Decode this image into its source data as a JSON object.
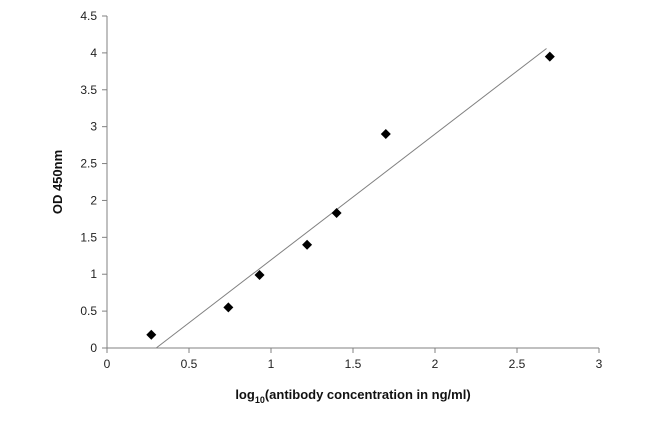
{
  "chart_data": {
    "type": "scatter",
    "title": "",
    "xlabel_main": "log",
    "xlabel_sub": "10",
    "xlabel_rest": "(antibody concentration in ng/ml)",
    "ylabel": "OD 450nm",
    "xlim": [
      0,
      3
    ],
    "ylim": [
      0,
      4.5
    ],
    "x_ticks": [
      0,
      0.5,
      1,
      1.5,
      2,
      2.5,
      3
    ],
    "x_tick_labels": [
      "0",
      "0.5",
      "1",
      "1.5",
      "2",
      "2.5",
      "3"
    ],
    "y_ticks": [
      0,
      0.5,
      1,
      1.5,
      2,
      2.5,
      3,
      3.5,
      4,
      4.5
    ],
    "y_tick_labels": [
      "0",
      "0.5",
      "1",
      "1.5",
      "2",
      "2.5",
      "3",
      "3.5",
      "4",
      "4.5"
    ],
    "grid": false,
    "legend": "none",
    "series": [
      {
        "points": [
          {
            "x": 0.27,
            "y": 0.18
          },
          {
            "x": 0.74,
            "y": 0.55
          },
          {
            "x": 0.93,
            "y": 0.99
          },
          {
            "x": 1.22,
            "y": 1.4
          },
          {
            "x": 1.4,
            "y": 1.83
          },
          {
            "x": 1.7,
            "y": 2.9
          },
          {
            "x": 2.7,
            "y": 3.95
          }
        ],
        "marker": "diamond",
        "color": "#000000"
      }
    ],
    "trendline": {
      "type": "linear",
      "x_start": 0.3,
      "y_start": 0.0,
      "x_end": 2.68,
      "y_end": 4.06,
      "color": "#808080"
    }
  }
}
